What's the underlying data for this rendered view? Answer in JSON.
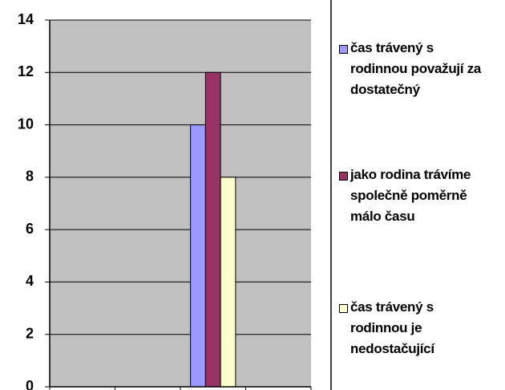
{
  "chart_data": {
    "type": "bar",
    "categories": [
      null,
      null,
      null,
      null
    ],
    "series": [
      {
        "name": "čas trávený s rodinnou považují za dostatečný",
        "color": "#9999ff",
        "values": [
          null,
          null,
          10,
          null
        ]
      },
      {
        "name": "jako rodina trávíme společně poměrně málo času",
        "color": "#993366",
        "values": [
          null,
          null,
          12,
          null
        ]
      },
      {
        "name": "čas trávený s rodinnou je nedostačující",
        "color": "#ffffcc",
        "values": [
          null,
          null,
          8,
          null
        ]
      }
    ],
    "ylim": [
      0,
      14
    ],
    "yticks": [
      0,
      2,
      4,
      6,
      8,
      10,
      12,
      14
    ],
    "grid": true,
    "legend": "right"
  }
}
